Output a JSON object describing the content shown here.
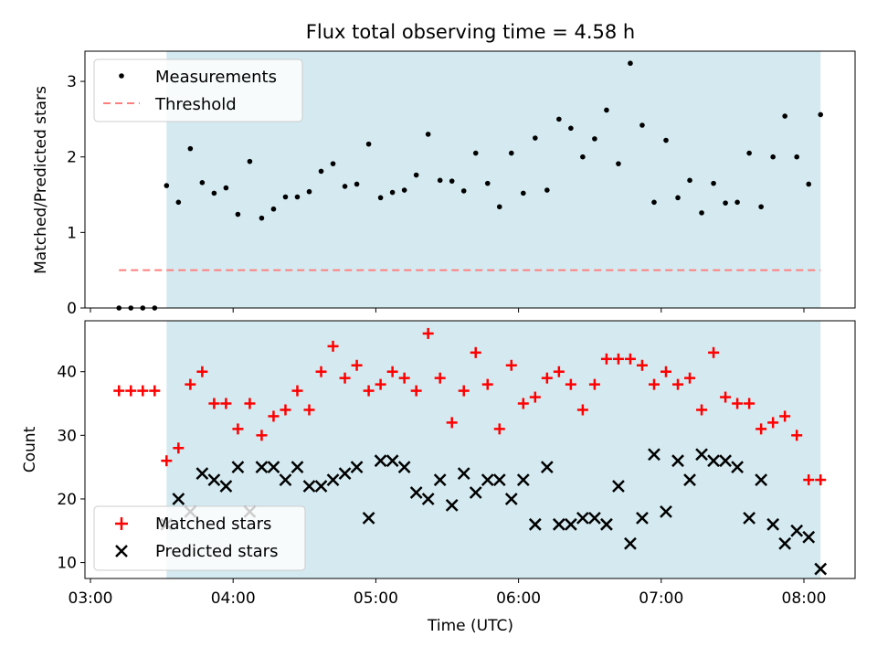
{
  "chart_data": [
    {
      "type": "scatter",
      "title": "Flux total observing time = 4.58 h",
      "ylabel": "Matched/Predicted stars",
      "xlabel": "",
      "ylim": [
        0,
        3.4
      ],
      "yticks": [
        "0",
        "1",
        "2",
        "3"
      ],
      "observing_window": {
        "start": "03:32",
        "end": "08:07",
        "color": "#d4eaf0"
      },
      "legend": {
        "placement": "top-left",
        "entries": [
          "Measurements",
          "Threshold"
        ]
      },
      "threshold": {
        "name": "Threshold",
        "value": 0.5,
        "from": "03:12",
        "to": "08:07",
        "color": "#ff7f7f"
      },
      "series": [
        {
          "name": "Measurements",
          "color": "#000000",
          "x": [
            "03:12",
            "03:17",
            "03:22",
            "03:27",
            "03:32",
            "03:37",
            "03:42",
            "03:47",
            "03:52",
            "03:57",
            "04:02",
            "04:07",
            "04:12",
            "04:17",
            "04:22",
            "04:27",
            "04:32",
            "04:37",
            "04:42",
            "04:47",
            "04:52",
            "04:57",
            "05:02",
            "05:07",
            "05:12",
            "05:17",
            "05:22",
            "05:27",
            "05:32",
            "05:37",
            "05:42",
            "05:47",
            "05:52",
            "05:57",
            "06:02",
            "06:07",
            "06:12",
            "06:17",
            "06:22",
            "06:27",
            "06:32",
            "06:37",
            "06:42",
            "06:47",
            "06:52",
            "06:57",
            "07:02",
            "07:07",
            "07:12",
            "07:17",
            "07:22",
            "07:27",
            "07:32",
            "07:37",
            "07:42",
            "07:47",
            "07:52",
            "07:57",
            "08:02",
            "08:07"
          ],
          "y": [
            0,
            0,
            0,
            0,
            1.62,
            1.4,
            2.11,
            1.66,
            1.52,
            1.59,
            1.24,
            1.94,
            1.19,
            1.31,
            1.47,
            1.47,
            1.54,
            1.81,
            1.91,
            1.61,
            1.64,
            2.17,
            1.46,
            1.53,
            1.56,
            1.76,
            2.3,
            1.69,
            1.68,
            1.55,
            2.05,
            1.65,
            1.34,
            2.05,
            1.52,
            2.25,
            1.56,
            2.5,
            2.38,
            2.0,
            2.24,
            2.62,
            1.91,
            3.24,
            2.42,
            1.4,
            2.22,
            1.46,
            1.69,
            1.26,
            1.65,
            1.39,
            1.4,
            2.05,
            1.34,
            2.0,
            2.54,
            2.0,
            1.64,
            2.56
          ]
        }
      ]
    },
    {
      "type": "scatter",
      "title": "",
      "ylabel": "Count",
      "xlabel": "Time (UTC)",
      "ylim": [
        7.5,
        48
      ],
      "yticks": [
        "10",
        "20",
        "30",
        "40"
      ],
      "xticks": [
        "03:00",
        "04:00",
        "05:00",
        "06:00",
        "07:00",
        "08:00"
      ],
      "observing_window": {
        "start": "03:32",
        "end": "08:07",
        "color": "#d4eaf0"
      },
      "legend": {
        "placement": "bottom-left",
        "entries": [
          "Matched stars",
          "Predicted stars"
        ]
      },
      "series": [
        {
          "name": "Matched stars",
          "marker": "plus",
          "color": "#ff0000",
          "x": [
            "03:12",
            "03:17",
            "03:22",
            "03:27",
            "03:32",
            "03:37",
            "03:42",
            "03:47",
            "03:52",
            "03:57",
            "04:02",
            "04:07",
            "04:12",
            "04:17",
            "04:22",
            "04:27",
            "04:32",
            "04:37",
            "04:42",
            "04:47",
            "04:52",
            "04:57",
            "05:02",
            "05:07",
            "05:12",
            "05:17",
            "05:22",
            "05:27",
            "05:32",
            "05:37",
            "05:42",
            "05:47",
            "05:52",
            "05:57",
            "06:02",
            "06:07",
            "06:12",
            "06:17",
            "06:22",
            "06:27",
            "06:32",
            "06:37",
            "06:42",
            "06:47",
            "06:52",
            "06:57",
            "07:02",
            "07:07",
            "07:12",
            "07:17",
            "07:22",
            "07:27",
            "07:32",
            "07:37",
            "07:42",
            "07:47",
            "07:52",
            "07:57",
            "08:02",
            "08:07"
          ],
          "y": [
            37,
            37,
            37,
            37,
            26,
            28,
            38,
            40,
            35,
            35,
            31,
            35,
            30,
            33,
            34,
            37,
            34,
            40,
            44,
            39,
            41,
            37,
            38,
            40,
            39,
            37,
            46,
            39,
            32,
            37,
            43,
            38,
            31,
            41,
            35,
            36,
            39,
            40,
            38,
            34,
            38,
            42,
            42,
            42,
            41,
            38,
            40,
            38,
            39,
            34,
            43,
            36,
            35,
            35,
            31,
            32,
            33,
            30,
            23,
            23
          ]
        },
        {
          "name": "Predicted stars",
          "marker": "x",
          "color": "#000000",
          "x": [
            "03:32",
            "03:37",
            "03:42",
            "03:47",
            "03:52",
            "03:57",
            "04:02",
            "04:07",
            "04:12",
            "04:17",
            "04:22",
            "04:27",
            "04:32",
            "04:37",
            "04:42",
            "04:47",
            "04:52",
            "04:57",
            "05:02",
            "05:07",
            "05:12",
            "05:17",
            "05:22",
            "05:27",
            "05:32",
            "05:37",
            "05:42",
            "05:47",
            "05:52",
            "05:57",
            "06:02",
            "06:07",
            "06:12",
            "06:17",
            "06:22",
            "06:27",
            "06:32",
            "06:37",
            "06:42",
            "06:47",
            "06:52",
            "06:57",
            "07:02",
            "07:07",
            "07:12",
            "07:17",
            "07:22",
            "07:27",
            "07:32",
            "07:37",
            "07:42",
            "07:47",
            "07:52",
            "07:57",
            "08:02",
            "08:07"
          ],
          "y": [
            16,
            20,
            18,
            24,
            23,
            22,
            25,
            18,
            25,
            25,
            23,
            25,
            22,
            22,
            23,
            24,
            25,
            17,
            26,
            26,
            25,
            21,
            20,
            23,
            19,
            24,
            21,
            23,
            23,
            20,
            23,
            16,
            25,
            16,
            16,
            17,
            17,
            16,
            22,
            13,
            17,
            27,
            18,
            26,
            23,
            27,
            26,
            26,
            25,
            17,
            23,
            16,
            13,
            15,
            14,
            9
          ]
        }
      ]
    }
  ]
}
